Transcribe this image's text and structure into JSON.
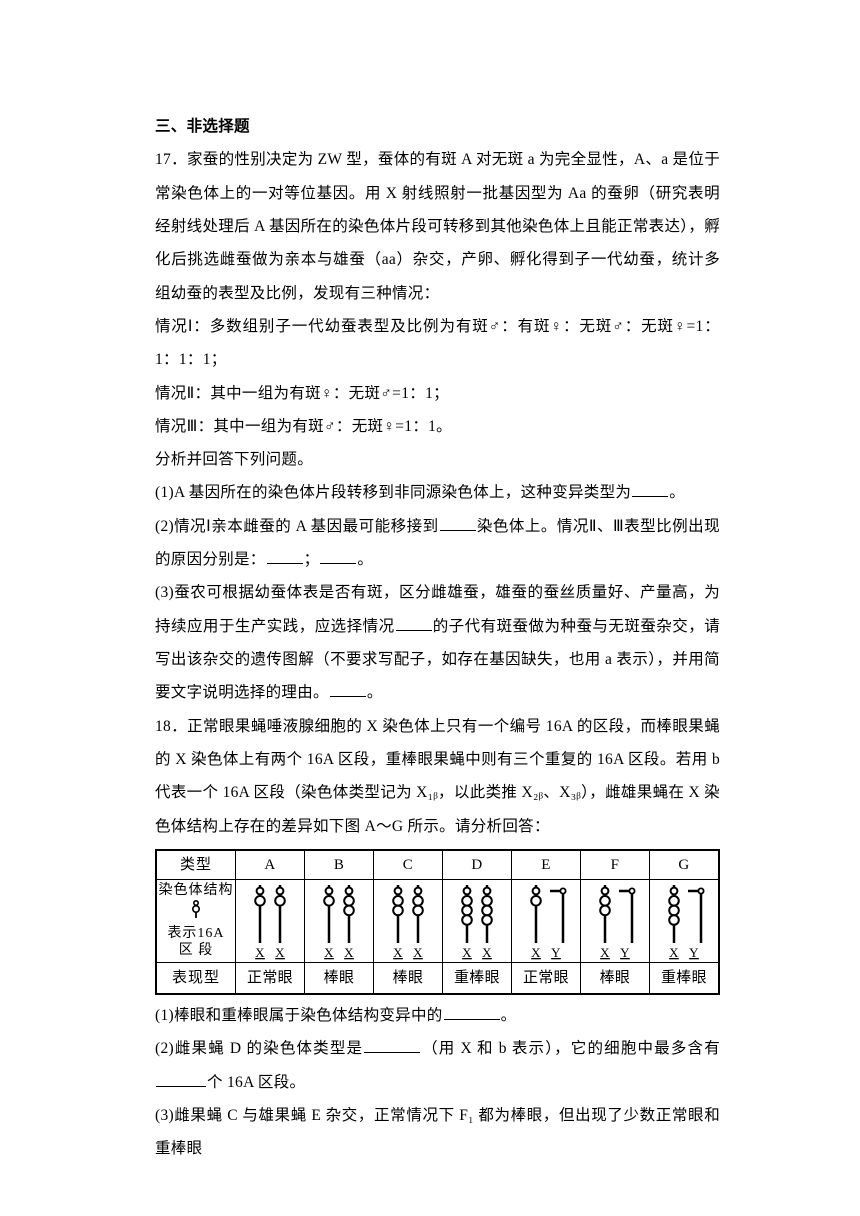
{
  "section_header": "三、非选择题",
  "q17": {
    "number": "17．",
    "intro_1": "家蚕的性别决定为 ZW 型，蚕体的有斑 A 对无斑 a 为完全显性，A、a 是位于常染色体上的一对等位基因。用 X 射线照射一批基因型为 Aa 的蚕卵（研究表明经射线处理后 A 基因所在的染色体片段可转移到其他染色体上且能正常表达），孵化后挑选雌蚕做为亲本与雄蚕（aa）杂交，产卵、孵化得到子一代幼蚕，统计多组幼蚕的表型及比例，发现有三种情况：",
    "case1": "情况Ⅰ：多数组别子一代幼蚕表型及比例为有斑♂：有斑♀：无斑♂：无斑♀=1：1：1：1；",
    "case2": "情况Ⅱ：其中一组为有斑♀：无斑♂=1：1；",
    "case3": "情况Ⅲ：其中一组为有斑♂：无斑♀=1：1。",
    "analyze": "分析并回答下列问题。",
    "p1a": "(1)A 基因所在的染色体片段转移到非同源染色体上，这种变异类型为",
    "p1b": "。",
    "p2a": "(2)情况Ⅰ亲本雌蚕的 A 基因最可能移接到",
    "p2b": "染色体上。情况Ⅱ、Ⅲ表型比例出现的原因分别是：",
    "p2c": "；",
    "p2d": "。",
    "p3a": "(3)蚕农可根据幼蚕体表是否有斑，区分雌雄蚕，雄蚕的蚕丝质量好、产量高，为持续应用于生产实践，应选择情况",
    "p3b": "的子代有斑蚕做为种蚕与无斑蚕杂交，请写出该杂交的遗传图解（不要求写配子，如存在基因缺失，也用 a 表示），并用简要文字说明选择的理由。",
    "p3c": "。"
  },
  "q18": {
    "number": "18．",
    "intro": "正常眼果蝇唾液腺细胞的 X 染色体上只有一个编号 16A 的区段，而棒眼果蝇的 X 染色体上有两个 16A 区段，重棒眼果蝇中则有三个重复的 16A 区段。若用 b 代表一个 16A 区段（染色体类型记为 X₁ᵦ，以此类推 X₂ᵦ、X₃ᵦ），雌雄果蝇在 X 染色体结构上存在的差异如下图 A～G 所示。请分析回答：",
    "table": {
      "header_label": "类型",
      "struct_label_line1": "染色体结构",
      "struct_label_line2": "表示16A",
      "struct_label_line3": "区    段",
      "pheno_label": "表现型",
      "columns": [
        {
          "col": "A",
          "pheno": "正常眼",
          "chrom1": {
            "type": "X",
            "segs": 1
          },
          "chrom2": {
            "type": "X",
            "segs": 1
          }
        },
        {
          "col": "B",
          "pheno": "棒眼",
          "chrom1": {
            "type": "X",
            "segs": 1
          },
          "chrom2": {
            "type": "X",
            "segs": 2
          }
        },
        {
          "col": "C",
          "pheno": "棒眼",
          "chrom1": {
            "type": "X",
            "segs": 2
          },
          "chrom2": {
            "type": "X",
            "segs": 2
          }
        },
        {
          "col": "D",
          "pheno": "重棒眼",
          "chrom1": {
            "type": "X",
            "segs": 3
          },
          "chrom2": {
            "type": "X",
            "segs": 3
          }
        },
        {
          "col": "E",
          "pheno": "正常眼",
          "chrom1": {
            "type": "X",
            "segs": 1
          },
          "chrom2": {
            "type": "Y",
            "segs": 0
          }
        },
        {
          "col": "F",
          "pheno": "棒眼",
          "chrom1": {
            "type": "X",
            "segs": 2
          },
          "chrom2": {
            "type": "Y",
            "segs": 0
          }
        },
        {
          "col": "G",
          "pheno": "重棒眼",
          "chrom1": {
            "type": "X",
            "segs": 3
          },
          "chrom2": {
            "type": "Y",
            "segs": 0
          }
        }
      ],
      "x_label": "X",
      "y_label": "Y",
      "legend_symbol_segs": 1
    },
    "p1a": "(1)棒眼和重棒眼属于染色体结构变异中的",
    "p1b": "。",
    "p2a": "(2)雌果蝇 D 的染色体类型是",
    "p2b": "（用 X 和 b 表示），它的细胞中最多含有",
    "p2c": "个 16A 区段。",
    "p3": "(3)雌果蝇 C 与雄果蝇 E 杂交，正常情况下 F₁ 都为棒眼，但出现了少数正常眼和重棒眼"
  }
}
